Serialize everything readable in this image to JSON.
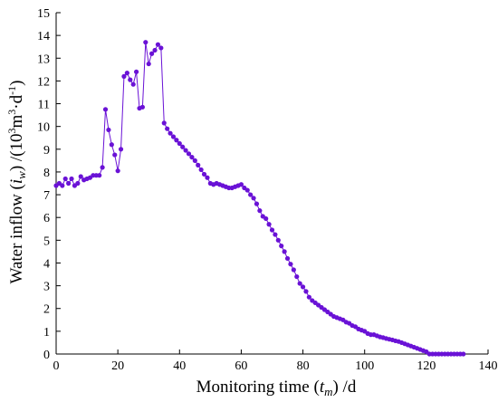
{
  "chart_data": {
    "type": "line",
    "xlabel": {
      "pre": "Monitoring time (",
      "var": "t",
      "sub": "m",
      "post": ") /d"
    },
    "ylabel": {
      "pre": "Water inflow (",
      "var": "i",
      "sub": "w",
      "mid": ") /(10",
      "sup1": "3",
      "m": "m",
      "sup2": "3",
      "dot": "·d",
      "sup3": "-1",
      "post": ")"
    },
    "xlim": [
      0,
      140
    ],
    "ylim": [
      0,
      15
    ],
    "xticks": [
      0,
      20,
      40,
      60,
      80,
      100,
      120,
      140
    ],
    "yticks": [
      0,
      1,
      2,
      3,
      4,
      5,
      6,
      7,
      8,
      9,
      10,
      11,
      12,
      13,
      14,
      15
    ],
    "grid": false,
    "series_color": "#6a12d6",
    "series": [
      {
        "x": [
          0,
          1,
          2,
          3,
          4,
          5,
          6,
          7,
          8,
          9,
          10,
          11,
          12,
          13,
          14,
          15,
          16,
          17,
          18,
          19,
          20,
          21,
          22,
          23,
          24,
          25,
          26,
          27,
          28,
          29,
          30,
          31,
          32,
          33,
          34,
          35,
          36,
          37,
          38,
          39,
          40,
          41,
          42,
          43,
          44,
          45,
          46,
          47,
          48,
          49,
          50,
          51,
          52,
          53,
          54,
          55,
          56,
          57,
          58,
          59,
          60,
          61,
          62,
          63,
          64,
          65,
          66,
          67,
          68,
          69,
          70,
          71,
          72,
          73,
          74,
          75,
          76,
          77,
          78,
          79,
          80,
          81,
          82,
          83,
          84,
          85,
          86,
          87,
          88,
          89,
          90,
          91,
          92,
          93,
          94,
          95,
          96,
          97,
          98,
          99,
          100,
          101,
          102,
          103,
          104,
          105,
          106,
          107,
          108,
          109,
          110,
          111,
          112,
          113,
          114,
          115,
          116,
          117,
          118,
          119,
          120,
          121,
          122,
          123,
          124,
          125,
          126,
          127,
          128,
          129,
          130,
          131,
          132
        ],
        "y": [
          7.4,
          7.5,
          7.4,
          7.7,
          7.5,
          7.7,
          7.4,
          7.5,
          7.8,
          7.65,
          7.7,
          7.75,
          7.85,
          7.85,
          7.85,
          8.2,
          10.75,
          9.85,
          9.2,
          8.75,
          8.05,
          9.0,
          12.2,
          12.35,
          12.05,
          11.85,
          12.4,
          10.8,
          10.85,
          13.7,
          12.75,
          13.2,
          13.35,
          13.6,
          13.45,
          10.15,
          9.9,
          9.7,
          9.55,
          9.4,
          9.25,
          9.1,
          8.95,
          8.8,
          8.65,
          8.5,
          8.3,
          8.1,
          7.9,
          7.75,
          7.5,
          7.45,
          7.5,
          7.45,
          7.4,
          7.35,
          7.3,
          7.3,
          7.35,
          7.4,
          7.45,
          7.3,
          7.2,
          7.0,
          6.85,
          6.6,
          6.3,
          6.05,
          5.95,
          5.7,
          5.45,
          5.25,
          5.0,
          4.75,
          4.5,
          4.2,
          3.95,
          3.7,
          3.4,
          3.1,
          2.95,
          2.75,
          2.5,
          2.35,
          2.25,
          2.15,
          2.05,
          1.95,
          1.85,
          1.75,
          1.65,
          1.6,
          1.55,
          1.5,
          1.4,
          1.35,
          1.25,
          1.2,
          1.1,
          1.05,
          1.0,
          0.9,
          0.85,
          0.85,
          0.8,
          0.75,
          0.72,
          0.68,
          0.65,
          0.62,
          0.58,
          0.55,
          0.5,
          0.45,
          0.4,
          0.35,
          0.3,
          0.25,
          0.2,
          0.15,
          0.1,
          0.0,
          0.0,
          0.0,
          0.0,
          0.0,
          0.0,
          0.0,
          0.0,
          0.0,
          0.0,
          0.0,
          0.0
        ]
      }
    ]
  }
}
